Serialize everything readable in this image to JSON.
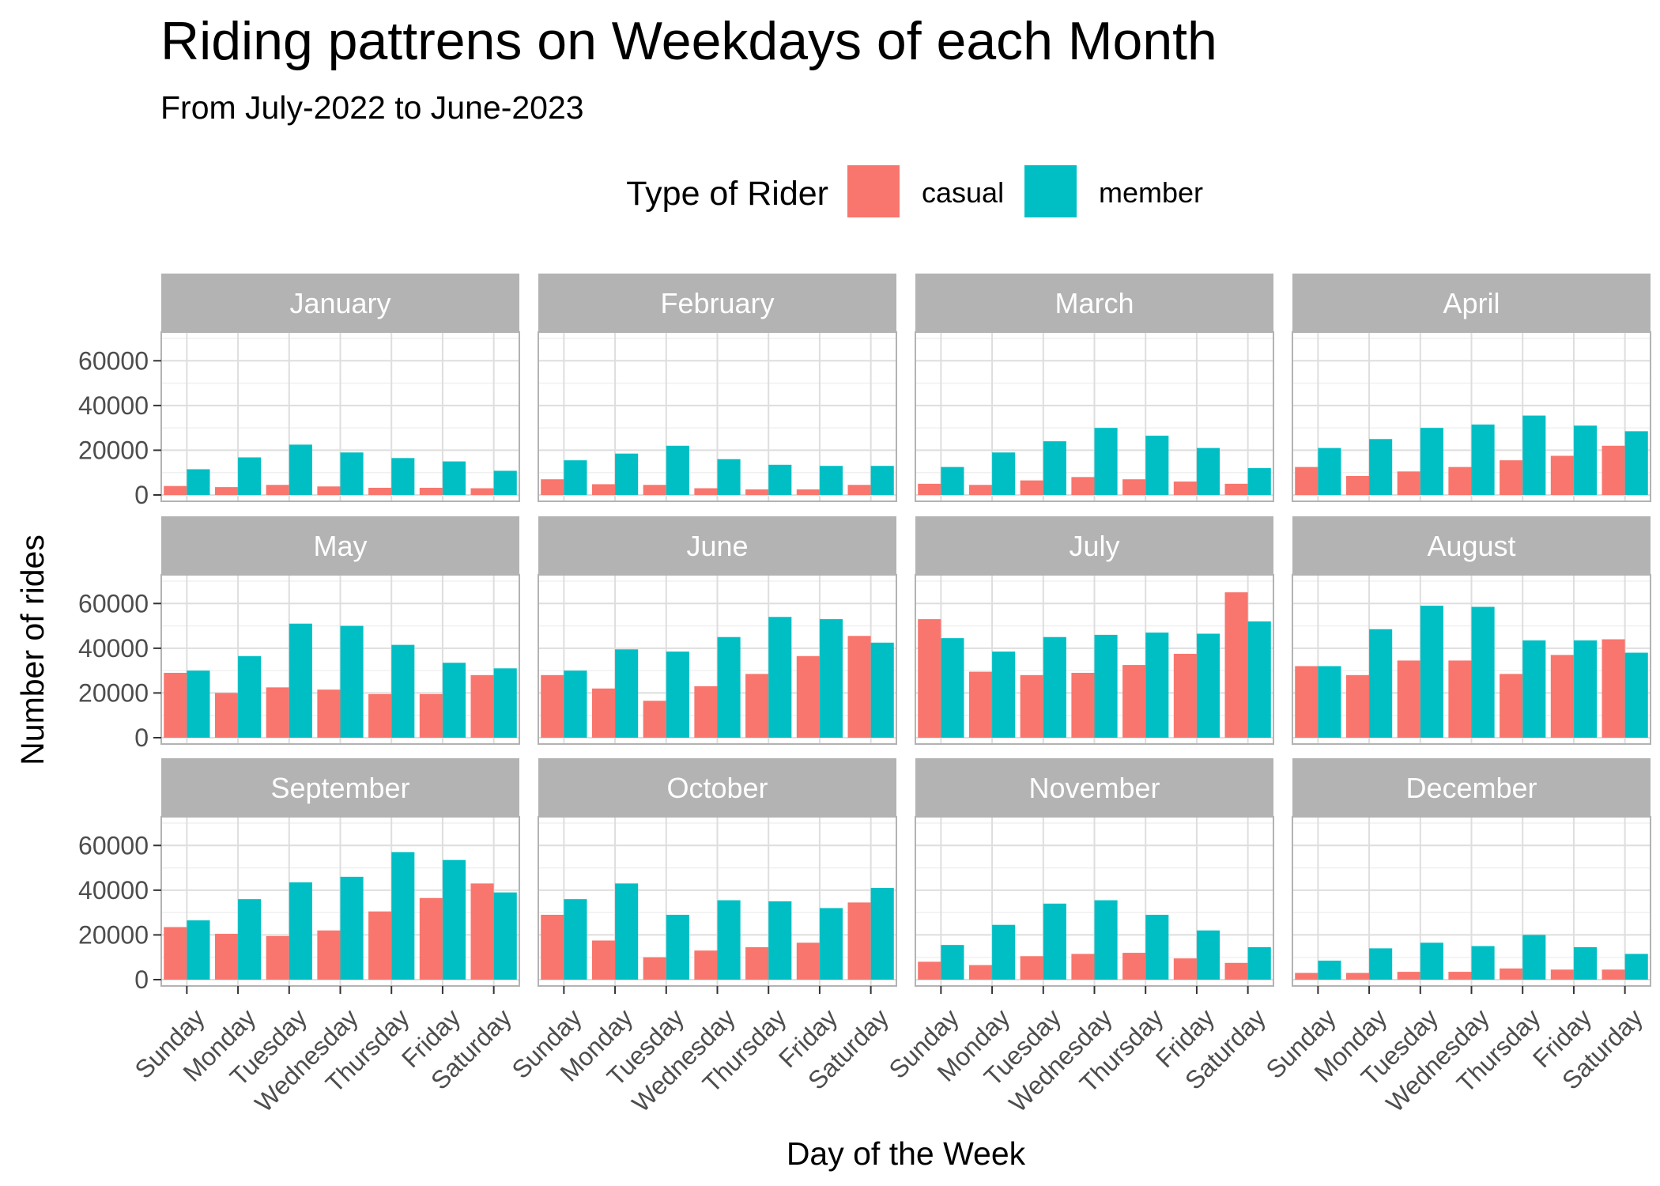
{
  "chart_data": {
    "type": "bar",
    "title": "Riding pattrens on Weekdays of each Month",
    "subtitle": "From July-2022 to June-2023",
    "xlabel": "Day of the Week",
    "ylabel": "Number of rides",
    "ylim": [
      0,
      70000
    ],
    "yticks": [
      0,
      20000,
      40000,
      60000
    ],
    "grid": true,
    "legend": {
      "title": "Type of Rider",
      "position": "top",
      "entries": [
        {
          "name": "casual",
          "color": "#F8766D"
        },
        {
          "name": "member",
          "color": "#00BFC4"
        }
      ]
    },
    "categories": [
      "Sunday",
      "Monday",
      "Tuesday",
      "Wednesday",
      "Thursday",
      "Friday",
      "Saturday"
    ],
    "facets": [
      {
        "month": "January",
        "series": [
          {
            "name": "casual",
            "values": [
              4000,
              3500,
              4500,
              3800,
              3200,
              3200,
              3000
            ]
          },
          {
            "name": "member",
            "values": [
              11500,
              16800,
              22500,
              19000,
              16500,
              15000,
              10800
            ]
          }
        ]
      },
      {
        "month": "February",
        "series": [
          {
            "name": "casual",
            "values": [
              7000,
              4800,
              4500,
              3000,
              2500,
              2500,
              4500
            ]
          },
          {
            "name": "member",
            "values": [
              15500,
              18500,
              22000,
              16000,
              13500,
              13000,
              13000
            ]
          }
        ]
      },
      {
        "month": "March",
        "series": [
          {
            "name": "casual",
            "values": [
              5000,
              4500,
              6500,
              8000,
              7000,
              6000,
              5000
            ]
          },
          {
            "name": "member",
            "values": [
              12500,
              19000,
              24000,
              30000,
              26500,
              21000,
              12000
            ]
          }
        ]
      },
      {
        "month": "April",
        "series": [
          {
            "name": "casual",
            "values": [
              12500,
              8500,
              10500,
              12500,
              15500,
              17500,
              22000
            ]
          },
          {
            "name": "member",
            "values": [
              21000,
              25000,
              30000,
              31500,
              35500,
              31000,
              28500
            ]
          }
        ]
      },
      {
        "month": "May",
        "series": [
          {
            "name": "casual",
            "values": [
              29000,
              20000,
              22500,
              21500,
              19500,
              19500,
              28000
            ]
          },
          {
            "name": "member",
            "values": [
              30000,
              36500,
              51000,
              50000,
              41500,
              33500,
              31000
            ]
          }
        ]
      },
      {
        "month": "June",
        "series": [
          {
            "name": "casual",
            "values": [
              28000,
              22000,
              16500,
              23000,
              28500,
              36500,
              45500
            ]
          },
          {
            "name": "member",
            "values": [
              30000,
              39500,
              38500,
              45000,
              54000,
              53000,
              42500
            ]
          }
        ]
      },
      {
        "month": "July",
        "series": [
          {
            "name": "casual",
            "values": [
              53000,
              29500,
              28000,
              29000,
              32500,
              37500,
              65000
            ]
          },
          {
            "name": "member",
            "values": [
              44500,
              38500,
              45000,
              46000,
              47000,
              46500,
              52000
            ]
          }
        ]
      },
      {
        "month": "August",
        "series": [
          {
            "name": "casual",
            "values": [
              32000,
              28000,
              34500,
              34500,
              28500,
              37000,
              44000
            ]
          },
          {
            "name": "member",
            "values": [
              32000,
              48500,
              59000,
              58500,
              43500,
              43500,
              38000
            ]
          }
        ]
      },
      {
        "month": "September",
        "series": [
          {
            "name": "casual",
            "values": [
              23500,
              20500,
              19500,
              22000,
              30500,
              36500,
              43000
            ]
          },
          {
            "name": "member",
            "values": [
              26500,
              36000,
              43500,
              46000,
              57000,
              53500,
              39000
            ]
          }
        ]
      },
      {
        "month": "October",
        "series": [
          {
            "name": "casual",
            "values": [
              29000,
              17500,
              10000,
              13000,
              14500,
              16500,
              34500
            ]
          },
          {
            "name": "member",
            "values": [
              36000,
              43000,
              29000,
              35500,
              35000,
              32000,
              41000
            ]
          }
        ]
      },
      {
        "month": "November",
        "series": [
          {
            "name": "casual",
            "values": [
              8000,
              6500,
              10500,
              11500,
              12000,
              9500,
              7500
            ]
          },
          {
            "name": "member",
            "values": [
              15500,
              24500,
              34000,
              35500,
              29000,
              22000,
              14500
            ]
          }
        ]
      },
      {
        "month": "December",
        "series": [
          {
            "name": "casual",
            "values": [
              3000,
              3000,
              3500,
              3500,
              5000,
              4500,
              4500
            ]
          },
          {
            "name": "member",
            "values": [
              8500,
              14000,
              16500,
              15000,
              20000,
              14500,
              11500
            ]
          }
        ]
      }
    ]
  }
}
